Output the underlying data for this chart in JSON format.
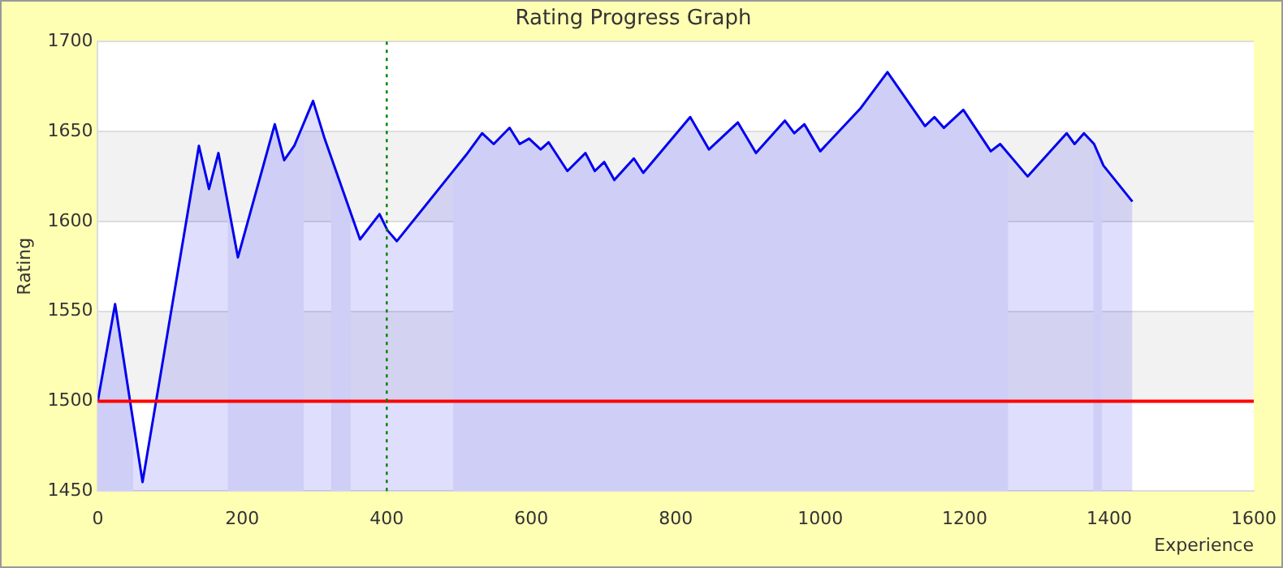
{
  "chart_data": {
    "type": "area",
    "title": "Rating Progress Graph",
    "xlabel": "Experience",
    "ylabel": "Rating",
    "xlim": [
      0,
      1600
    ],
    "xticks": [
      0,
      200,
      400,
      600,
      800,
      1000,
      1200,
      1400,
      1600
    ],
    "ylim": [
      1450,
      1700
    ],
    "yticks": [
      1450,
      1500,
      1550,
      1600,
      1650,
      1700
    ],
    "grid": "y",
    "marker": "none",
    "series": [
      {
        "color": "#0000ee",
        "x": [
          0,
          24,
          62,
          140,
          154,
          167,
          194,
          245,
          258,
          272,
          298,
          314,
          363,
          390,
          401,
          414,
          488,
          510,
          532,
          548,
          570,
          584,
          597,
          613,
          624,
          650,
          675,
          688,
          701,
          715,
          742,
          755,
          820,
          846,
          886,
          911,
          951,
          964,
          978,
          1000,
          1056,
          1093,
          1145,
          1158,
          1171,
          1198,
          1236,
          1249,
          1287,
          1341,
          1352,
          1365,
          1379,
          1392,
          1432
        ],
        "values": [
          1500,
          1554,
          1455,
          1642,
          1618,
          1638,
          1580,
          1654,
          1634,
          1642,
          1667,
          1646,
          1590,
          1604,
          1595,
          1589,
          1626,
          1637,
          1649,
          1643,
          1652,
          1643,
          1646,
          1640,
          1644,
          1628,
          1638,
          1628,
          1633,
          1623,
          1635,
          1627,
          1658,
          1640,
          1655,
          1638,
          1656,
          1649,
          1654,
          1639,
          1663,
          1683,
          1653,
          1658,
          1652,
          1662,
          1639,
          1643,
          1625,
          1649,
          1643,
          1649,
          1643,
          1631,
          1611
        ]
      }
    ],
    "bands": [
      {
        "axis": "x",
        "from": 0,
        "to": 49,
        "color": "#ececf9"
      },
      {
        "axis": "x",
        "from": 180,
        "to": 285,
        "color": "#ececf9"
      },
      {
        "axis": "x",
        "from": 323,
        "to": 350,
        "color": "#ececf9"
      },
      {
        "axis": "x",
        "from": 492,
        "to": 1260,
        "color": "#ececf9"
      },
      {
        "axis": "x",
        "from": 1378,
        "to": 1390,
        "color": "#ececf9"
      }
    ],
    "ref_lines": [
      {
        "axis": "y",
        "value": 1500,
        "color": "#ff0000",
        "line_style": "solid"
      },
      {
        "axis": "x",
        "value": 400,
        "color": "#008000",
        "line_style": "dotted"
      }
    ]
  }
}
